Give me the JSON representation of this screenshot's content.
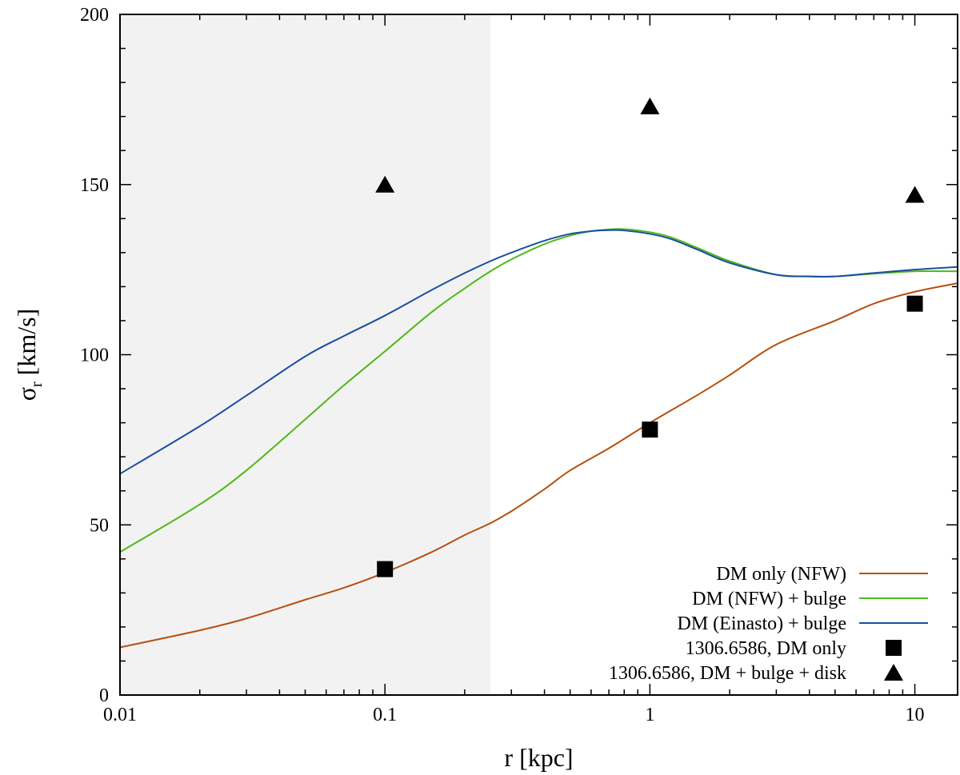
{
  "chart_data": {
    "type": "line",
    "title": "",
    "xlabel": "r [kpc]",
    "ylabel_main": "σ",
    "ylabel_sub": "r",
    "ylabel_units": " [km/s]",
    "xscale": "log",
    "xlim": [
      0.01,
      14.5
    ],
    "ylim": [
      0,
      200
    ],
    "x_ticks": [
      {
        "value": 0.01,
        "label": "0.01"
      },
      {
        "value": 0.1,
        "label": "0.1"
      },
      {
        "value": 1,
        "label": "1"
      },
      {
        "value": 10,
        "label": "10"
      }
    ],
    "y_ticks": [
      {
        "value": 0,
        "label": "0"
      },
      {
        "value": 50,
        "label": "50"
      },
      {
        "value": 100,
        "label": "100"
      },
      {
        "value": 150,
        "label": "150"
      },
      {
        "value": 200,
        "label": "200"
      }
    ],
    "shaded_region": {
      "x_from": 0.01,
      "x_to": 0.25,
      "color": "#f2f2f2"
    },
    "legend_position": "bottom-right",
    "series": [
      {
        "name": "DM only (NFW)",
        "kind": "line",
        "color": "#b5500f",
        "x": [
          0.01,
          0.02,
          0.03,
          0.05,
          0.07,
          0.1,
          0.15,
          0.2,
          0.25,
          0.3,
          0.4,
          0.5,
          0.7,
          1,
          1.5,
          2,
          3,
          5,
          7,
          10,
          14.5
        ],
        "y": [
          14,
          19,
          22.5,
          28,
          31.5,
          36,
          42,
          47,
          50.5,
          54,
          60.5,
          66,
          72.5,
          80,
          88,
          94,
          103,
          110,
          115,
          118.5,
          121
        ]
      },
      {
        "name": "DM (NFW) + bulge",
        "kind": "line",
        "color": "#4fb81a",
        "x": [
          0.01,
          0.02,
          0.03,
          0.05,
          0.07,
          0.1,
          0.15,
          0.2,
          0.25,
          0.3,
          0.4,
          0.5,
          0.6,
          0.7,
          0.8,
          1,
          1.2,
          1.5,
          2,
          3,
          4,
          5,
          7,
          10,
          14.5
        ],
        "y": [
          42,
          56,
          66,
          81,
          91,
          101,
          112.5,
          119.5,
          124.5,
          128,
          132.5,
          135,
          136.3,
          136.8,
          136.9,
          136,
          134.5,
          131.5,
          127.5,
          123.5,
          123,
          123,
          123.8,
          124.5,
          124.5
        ]
      },
      {
        "name": "DM (Einasto) + bulge",
        "kind": "line",
        "color": "#1a4fa0",
        "x": [
          0.01,
          0.02,
          0.03,
          0.05,
          0.07,
          0.1,
          0.15,
          0.2,
          0.25,
          0.3,
          0.4,
          0.5,
          0.6,
          0.7,
          0.8,
          1,
          1.2,
          1.5,
          2,
          3,
          4,
          5,
          7,
          10,
          14.5
        ],
        "y": [
          65,
          79,
          88,
          99.5,
          105.5,
          111.5,
          119,
          124,
          127.5,
          130,
          133.5,
          135.5,
          136.3,
          136.6,
          136.5,
          135.5,
          134,
          131,
          127,
          123.5,
          123,
          123,
          124,
          125,
          125.8
        ]
      },
      {
        "name": "1306.6586, DM only",
        "kind": "marker",
        "marker": "square",
        "color": "#000000",
        "x": [
          0.1,
          1,
          10
        ],
        "y": [
          37,
          78,
          115
        ]
      },
      {
        "name": "1306.6586, DM + bulge + disk",
        "kind": "marker",
        "marker": "triangle",
        "color": "#000000",
        "x": [
          0.1,
          1,
          10
        ],
        "y": [
          150,
          173,
          147
        ]
      }
    ]
  }
}
